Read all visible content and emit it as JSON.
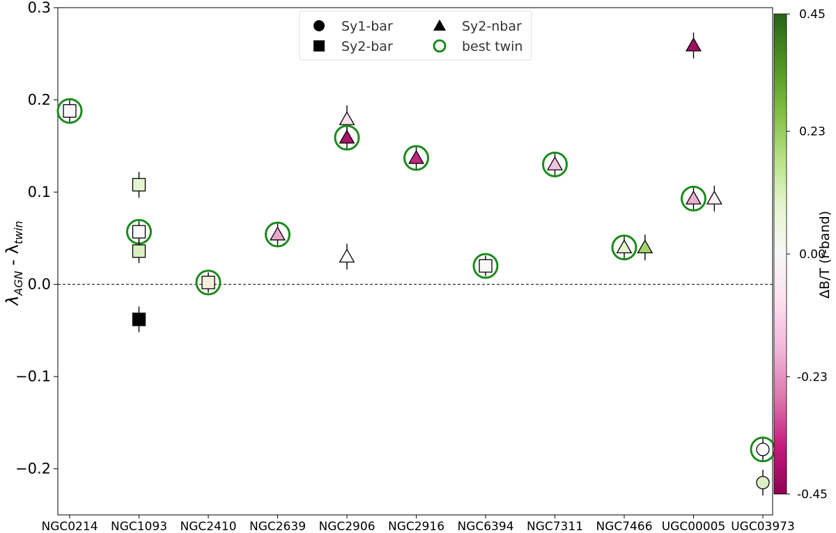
{
  "chart_data": {
    "type": "scatter",
    "categories": [
      "NGC0214",
      "NGC1093",
      "NGC2410",
      "NGC2639",
      "NGC2906",
      "NGC2916",
      "NGC6394",
      "NGC7311",
      "NGC7466",
      "UGC00005",
      "UGC03973"
    ],
    "ylabel_main": "λ",
    "ylabel_sub1": "AGN",
    "ylabel_mid": " - λ",
    "ylabel_sub2": "twin",
    "ylim": [
      -0.25,
      0.3
    ],
    "yticks": [
      -0.2,
      -0.1,
      0.0,
      0.1,
      0.2,
      0.3
    ],
    "ytick_labels": [
      "−0.2",
      "−0.1",
      "0.0",
      "0.1",
      "0.2",
      "0.3"
    ],
    "reference_line": 0.0,
    "grid": false,
    "legend_position": "top-center",
    "legend": [
      {
        "label": "Sy1-bar",
        "marker": "circle"
      },
      {
        "label": "Sy2-bar",
        "marker": "square"
      },
      {
        "label": "Sy2-nbar",
        "marker": "triangle"
      },
      {
        "label": "best twin",
        "marker": "ring"
      }
    ],
    "colorbar": {
      "label": "ΔB/T (r-band)",
      "range": [
        -0.45,
        0.45
      ],
      "tick_labels": [
        "0.45",
        "0.23",
        "0.00",
        "-0.23",
        "-0.45"
      ],
      "tick_values": [
        0.45,
        0.23,
        0.0,
        -0.23,
        -0.45
      ],
      "colormap": "PiYG",
      "stops": [
        "#8e0152",
        "#c51b7d",
        "#de77ae",
        "#f1b6da",
        "#fde0ef",
        "#f7f7f7",
        "#e6f5d0",
        "#b8e186",
        "#7fbc41",
        "#4d9221",
        "#276419"
      ]
    },
    "best_twin_color": "#1a8a1a",
    "points": [
      {
        "category": "NGC0214",
        "offset": 0,
        "y": 0.188,
        "err": 0.012,
        "marker": "square",
        "color": "#f7f7f7",
        "best_twin": true
      },
      {
        "category": "NGC1093",
        "offset": 0,
        "y": 0.108,
        "err": 0.014,
        "marker": "square",
        "color": "#e6f5d0",
        "best_twin": false
      },
      {
        "category": "NGC1093",
        "offset": 0,
        "y": 0.057,
        "err": 0.012,
        "marker": "square",
        "color": "#f7f7f7",
        "best_twin": true
      },
      {
        "category": "NGC1093",
        "offset": 0,
        "y": 0.036,
        "err": 0.013,
        "marker": "square",
        "color": "#d9efc0",
        "best_twin": false
      },
      {
        "category": "NGC1093",
        "offset": 0,
        "y": -0.038,
        "err": 0.014,
        "marker": "square",
        "color": "#000000",
        "best_twin": false
      },
      {
        "category": "NGC2410",
        "offset": 0,
        "y": 0.002,
        "err": 0.011,
        "marker": "square",
        "color": "#f5f0dc",
        "best_twin": true
      },
      {
        "category": "NGC2639",
        "offset": 0,
        "y": 0.054,
        "err": 0.012,
        "marker": "triangle",
        "color": "#eaa7cc",
        "best_twin": true
      },
      {
        "category": "NGC2906",
        "offset": 0,
        "y": 0.179,
        "err": 0.015,
        "marker": "triangle",
        "color": "#fbe0ee",
        "best_twin": false
      },
      {
        "category": "NGC2906",
        "offset": 0,
        "y": 0.159,
        "err": 0.012,
        "marker": "triangle",
        "color": "#a8156a",
        "best_twin": true
      },
      {
        "category": "NGC2906",
        "offset": 0,
        "y": 0.03,
        "err": 0.014,
        "marker": "triangle",
        "color": "#ffffff",
        "best_twin": false
      },
      {
        "category": "NGC2916",
        "offset": 0,
        "y": 0.137,
        "err": 0.012,
        "marker": "triangle",
        "color": "#c0287d",
        "best_twin": true
      },
      {
        "category": "NGC6394",
        "offset": 0,
        "y": 0.02,
        "err": 0.011,
        "marker": "square",
        "color": "#f7f7f7",
        "best_twin": true
      },
      {
        "category": "NGC7311",
        "offset": 0,
        "y": 0.13,
        "err": 0.012,
        "marker": "triangle",
        "color": "#f3c4df",
        "best_twin": true
      },
      {
        "category": "NGC7466",
        "offset": 0,
        "y": 0.04,
        "err": 0.012,
        "marker": "triangle",
        "color": "#e6f5d0",
        "best_twin": true
      },
      {
        "category": "NGC7466",
        "offset": 0.3,
        "y": 0.04,
        "err": 0.014,
        "marker": "triangle",
        "color": "#a5d46f",
        "best_twin": false
      },
      {
        "category": "UGC00005",
        "offset": 0,
        "y": 0.259,
        "err": 0.014,
        "marker": "triangle",
        "color": "#9e0d5f",
        "best_twin": false
      },
      {
        "category": "UGC00005",
        "offset": 0,
        "y": 0.093,
        "err": 0.012,
        "marker": "triangle",
        "color": "#ebafd2",
        "best_twin": true
      },
      {
        "category": "UGC00005",
        "offset": 0.3,
        "y": 0.093,
        "err": 0.014,
        "marker": "triangle",
        "color": "#fbeef5",
        "best_twin": false
      },
      {
        "category": "UGC03973",
        "offset": 0,
        "y": -0.179,
        "err": 0.012,
        "marker": "circle",
        "color": "#ffffff",
        "best_twin": true
      },
      {
        "category": "UGC03973",
        "offset": 0,
        "y": -0.215,
        "err": 0.014,
        "marker": "circle",
        "color": "#dcefc6",
        "best_twin": false
      }
    ]
  }
}
